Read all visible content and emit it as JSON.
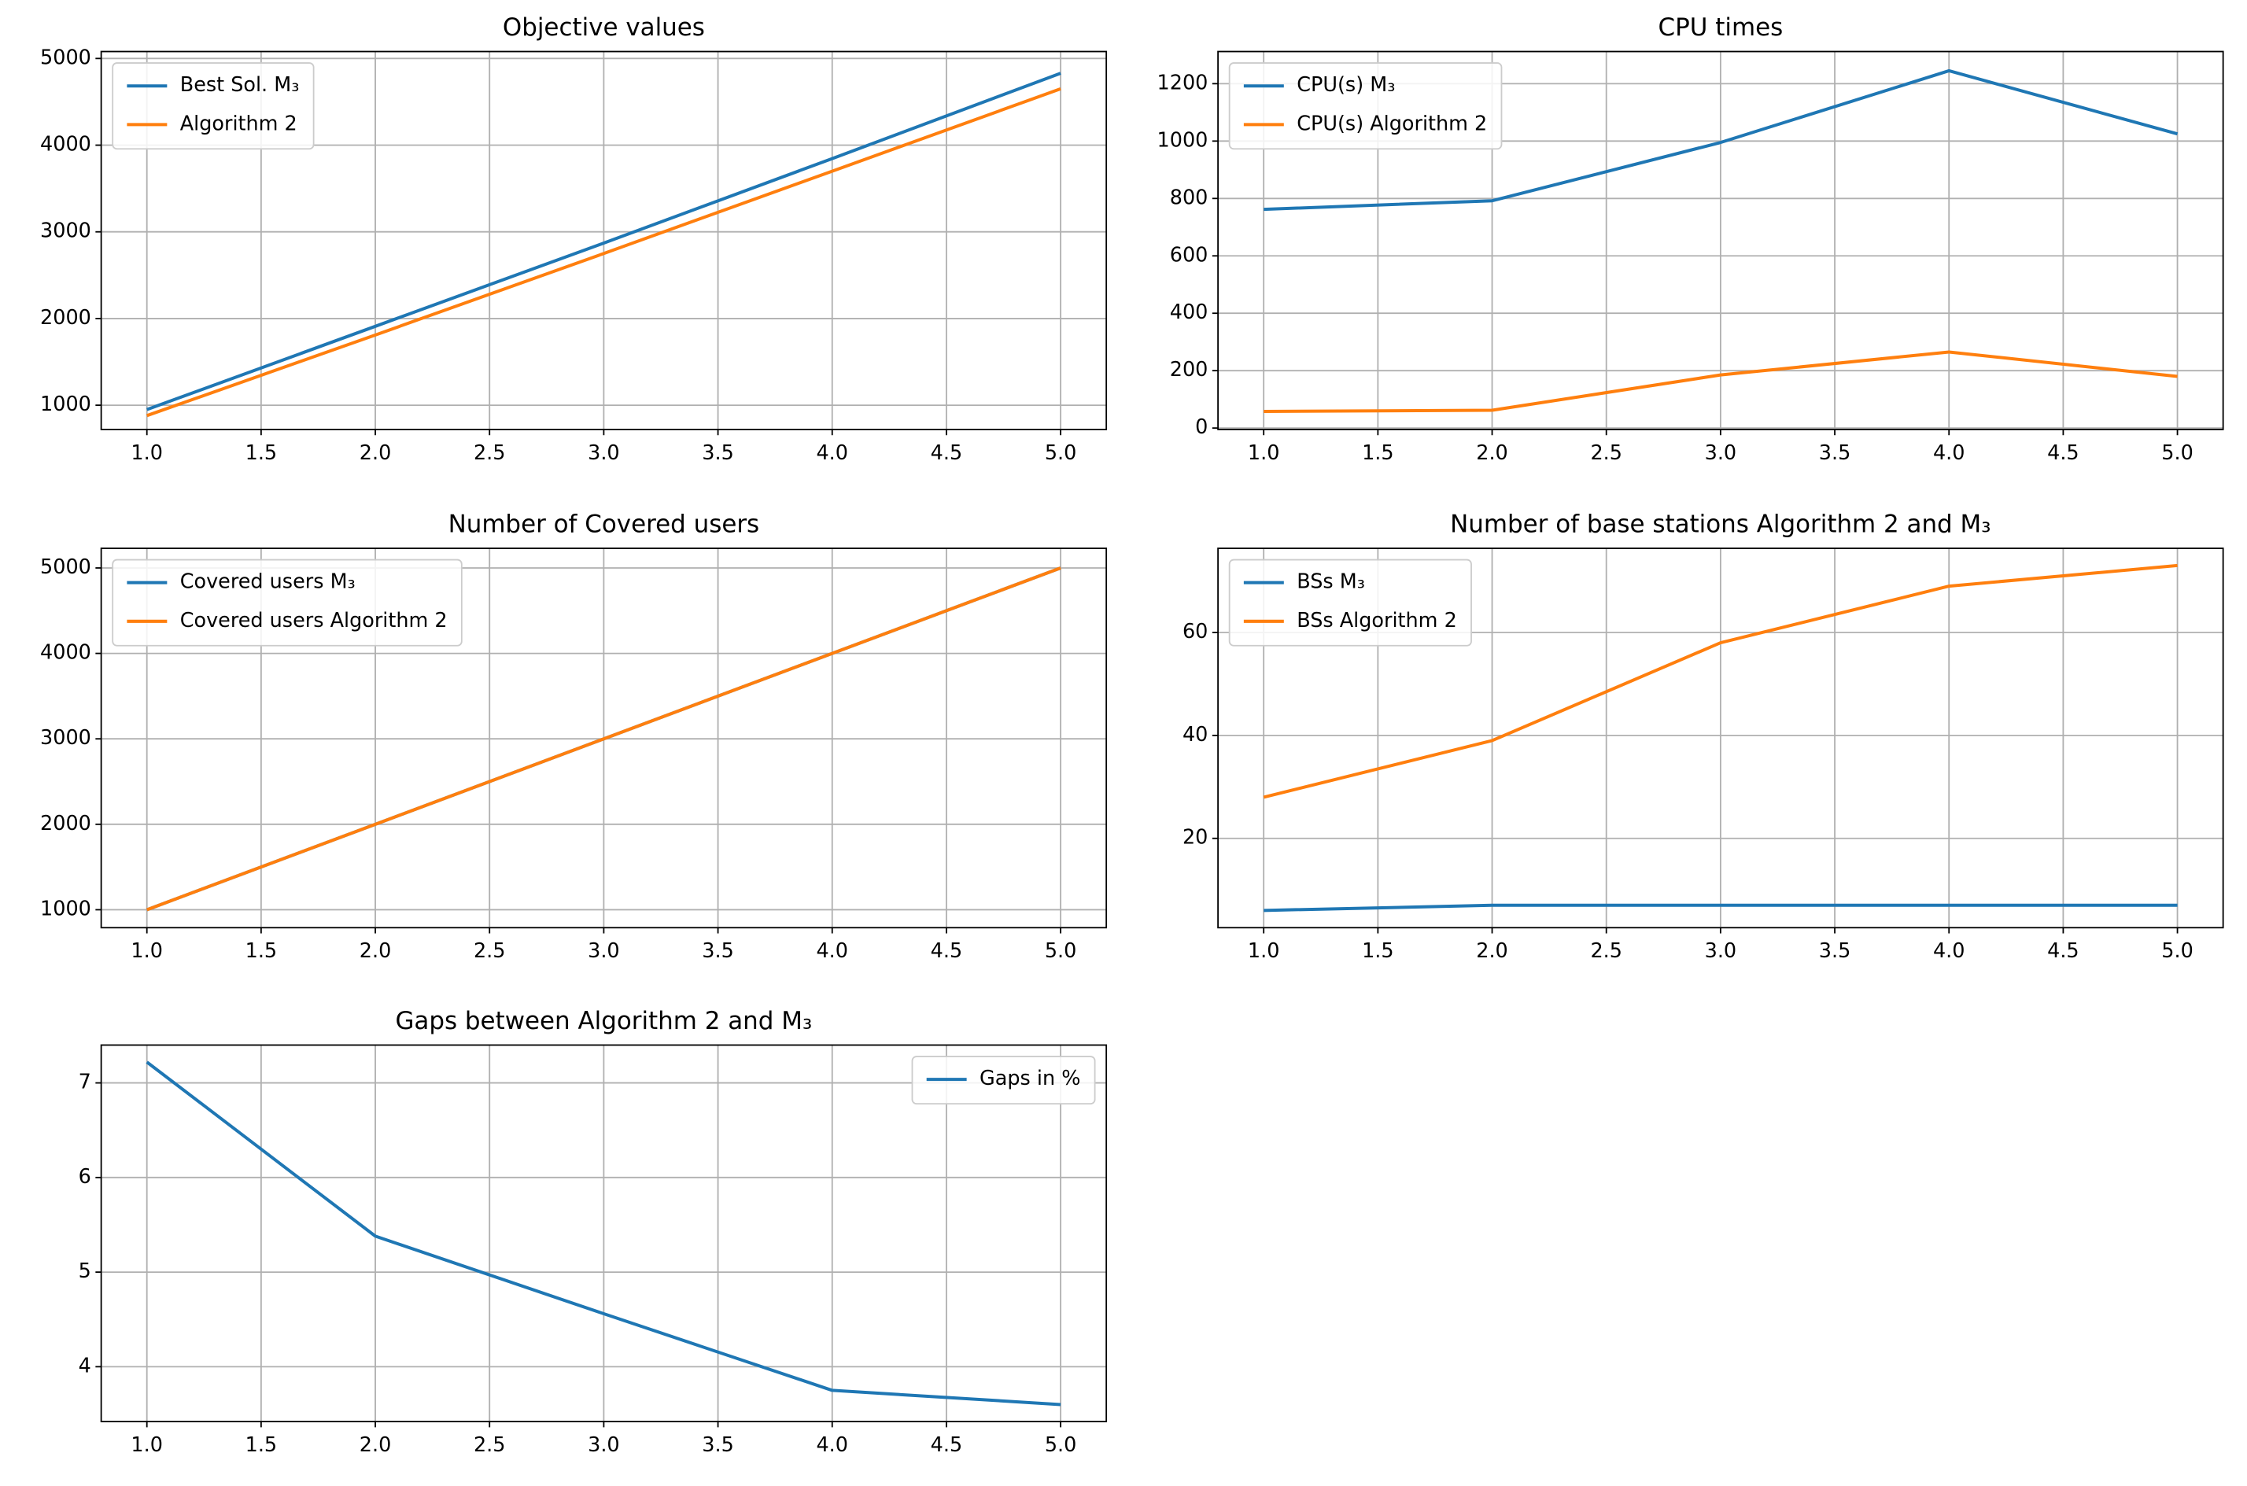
{
  "chart_data": [
    {
      "type": "line",
      "title": "Objective values",
      "x": [
        1,
        2,
        3,
        4,
        5
      ],
      "series": [
        {
          "name": "Best Sol. M₃",
          "color": "#1f77b4",
          "values": [
            950,
            1910,
            2870,
            3845,
            4830
          ]
        },
        {
          "name": "Algorithm 2",
          "color": "#ff7f0e",
          "values": [
            880,
            1810,
            2750,
            3700,
            4650
          ]
        }
      ],
      "xlim": [
        0.8,
        5.2
      ],
      "ylim": [
        720,
        5080
      ],
      "xticks": [
        {
          "value": 1,
          "label": "1.0"
        },
        {
          "value": 1.5,
          "label": "1.5"
        },
        {
          "value": 2,
          "label": "2.0"
        },
        {
          "value": 2.5,
          "label": "2.5"
        },
        {
          "value": 3,
          "label": "3.0"
        },
        {
          "value": 3.5,
          "label": "3.5"
        },
        {
          "value": 4,
          "label": "4.0"
        },
        {
          "value": 4.5,
          "label": "4.5"
        },
        {
          "value": 5,
          "label": "5.0"
        }
      ],
      "yticks": [
        1000,
        2000,
        3000,
        4000,
        5000
      ],
      "grid": true,
      "legend_loc": "upper left"
    },
    {
      "type": "line",
      "title": "CPU times",
      "x": [
        1,
        2,
        3,
        4,
        5
      ],
      "series": [
        {
          "name": "CPU(s) M₃",
          "color": "#1f77b4",
          "values": [
            762,
            792,
            995,
            1245,
            1025
          ]
        },
        {
          "name": "CPU(s) Algorithm 2",
          "color": "#ff7f0e",
          "values": [
            58,
            62,
            185,
            265,
            180
          ]
        }
      ],
      "xlim": [
        0.8,
        5.2
      ],
      "ylim": [
        -5,
        1312
      ],
      "xticks": [
        {
          "value": 1,
          "label": "1.0"
        },
        {
          "value": 1.5,
          "label": "1.5"
        },
        {
          "value": 2,
          "label": "2.0"
        },
        {
          "value": 2.5,
          "label": "2.5"
        },
        {
          "value": 3,
          "label": "3.0"
        },
        {
          "value": 3.5,
          "label": "3.5"
        },
        {
          "value": 4,
          "label": "4.0"
        },
        {
          "value": 4.5,
          "label": "4.5"
        },
        {
          "value": 5,
          "label": "5.0"
        }
      ],
      "yticks": [
        0,
        200,
        400,
        600,
        800,
        1000,
        1200
      ],
      "grid": true,
      "legend_loc": "upper left"
    },
    {
      "type": "line",
      "title": "Number of Covered users",
      "x": [
        1,
        2,
        3,
        4,
        5
      ],
      "series": [
        {
          "name": "Covered users M₃",
          "color": "#1f77b4",
          "values": [
            1000,
            2000,
            3000,
            4000,
            5000
          ]
        },
        {
          "name": "Covered users Algorithm 2",
          "color": "#ff7f0e",
          "values": [
            1000,
            2000,
            3000,
            4000,
            5000
          ]
        }
      ],
      "xlim": [
        0.8,
        5.2
      ],
      "ylim": [
        790,
        5230
      ],
      "xticks": [
        {
          "value": 1,
          "label": "1.0"
        },
        {
          "value": 1.5,
          "label": "1.5"
        },
        {
          "value": 2,
          "label": "2.0"
        },
        {
          "value": 2.5,
          "label": "2.5"
        },
        {
          "value": 3,
          "label": "3.0"
        },
        {
          "value": 3.5,
          "label": "3.5"
        },
        {
          "value": 4,
          "label": "4.0"
        },
        {
          "value": 4.5,
          "label": "4.5"
        },
        {
          "value": 5,
          "label": "5.0"
        }
      ],
      "yticks": [
        1000,
        2000,
        3000,
        4000,
        5000
      ],
      "grid": true,
      "legend_loc": "upper left"
    },
    {
      "type": "line",
      "title": "Number of base stations Algorithm 2 and M₃",
      "x": [
        1,
        2,
        3,
        4,
        5
      ],
      "series": [
        {
          "name": "BSs M₃",
          "color": "#1f77b4",
          "values": [
            6,
            7,
            7,
            7,
            7
          ]
        },
        {
          "name": "BSs Algorithm 2",
          "color": "#ff7f0e",
          "values": [
            28,
            39,
            58,
            69,
            73
          ]
        }
      ],
      "xlim": [
        0.8,
        5.2
      ],
      "ylim": [
        2.65,
        76.35
      ],
      "xticks": [
        {
          "value": 1,
          "label": "1.0"
        },
        {
          "value": 1.5,
          "label": "1.5"
        },
        {
          "value": 2,
          "label": "2.0"
        },
        {
          "value": 2.5,
          "label": "2.5"
        },
        {
          "value": 3,
          "label": "3.0"
        },
        {
          "value": 3.5,
          "label": "3.5"
        },
        {
          "value": 4,
          "label": "4.0"
        },
        {
          "value": 4.5,
          "label": "4.5"
        },
        {
          "value": 5,
          "label": "5.0"
        }
      ],
      "yticks": [
        20,
        40,
        60
      ],
      "grid": true,
      "legend_loc": "upper left"
    },
    {
      "type": "line",
      "title": "Gaps between Algorithm 2 and M₃",
      "x": [
        1,
        2,
        3,
        4,
        5
      ],
      "series": [
        {
          "name": "Gaps in %",
          "color": "#1f77b4",
          "values": [
            7.22,
            5.38,
            4.56,
            3.75,
            3.6
          ]
        }
      ],
      "xlim": [
        0.8,
        5.2
      ],
      "ylim": [
        3.42,
        7.4
      ],
      "xticks": [
        {
          "value": 1,
          "label": "1.0"
        },
        {
          "value": 1.5,
          "label": "1.5"
        },
        {
          "value": 2,
          "label": "2.0"
        },
        {
          "value": 2.5,
          "label": "2.5"
        },
        {
          "value": 3,
          "label": "3.0"
        },
        {
          "value": 3.5,
          "label": "3.5"
        },
        {
          "value": 4,
          "label": "4.0"
        },
        {
          "value": 4.5,
          "label": "4.5"
        },
        {
          "value": 5,
          "label": "5.0"
        }
      ],
      "yticks": [
        4,
        5,
        6,
        7
      ],
      "grid": true,
      "legend_loc": "upper right"
    }
  ]
}
